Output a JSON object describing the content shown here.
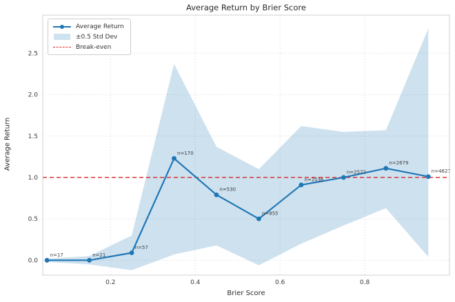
{
  "figure": {
    "title": "Average Return by Brier Score",
    "xlabel": "Brier Score",
    "ylabel": "Average Return"
  },
  "legend": {
    "average_return": "Average Return",
    "std_dev": "±0.5 Std Dev",
    "break_even": "Break-even"
  },
  "colors": {
    "line": "#1f77b4",
    "band_fill": "#1f77b4",
    "band_opacity": 0.22,
    "break_even": "#d62728",
    "grid": "#d2d2d2",
    "spine": "#d0d0d0",
    "text": "#2b2b2b",
    "tick_text": "#3b3b3b",
    "annotation_text": "#3d3d3d"
  },
  "chart_data": {
    "type": "line",
    "title": "Average Return by Brier Score",
    "xlabel": "Brier Score",
    "ylabel": "Average Return",
    "x": [
      0.05,
      0.15,
      0.25,
      0.35,
      0.45,
      0.55,
      0.65,
      0.75,
      0.85,
      0.95
    ],
    "series": [
      {
        "name": "Average Return",
        "values": [
          0.0,
          0.0,
          0.09,
          1.23,
          0.79,
          0.5,
          0.91,
          1.0,
          1.11,
          1.01
        ]
      },
      {
        "name": "+0.5 Std Dev (upper band edge)",
        "values": [
          0.02,
          0.05,
          0.3,
          2.37,
          1.37,
          1.1,
          1.62,
          1.55,
          1.57,
          2.8
        ]
      },
      {
        "name": "-0.5 Std Dev (lower band edge)",
        "values": [
          -0.02,
          -0.05,
          -0.12,
          0.07,
          0.18,
          -0.06,
          0.2,
          0.42,
          0.63,
          0.04
        ]
      }
    ],
    "point_labels": [
      "n=17",
      "n=21",
      "n=57",
      "n=170",
      "n=530",
      "n=855",
      "n=2036",
      "n=2572",
      "n=2679",
      "n=4627"
    ],
    "break_even_value": 1.0,
    "xtick_values": [
      0.2,
      0.4,
      0.6,
      0.8
    ],
    "xtick_labels": [
      "0.2",
      "0.4",
      "0.6",
      "0.8"
    ],
    "ytick_values": [
      0.0,
      0.5,
      1.0,
      1.5,
      2.0,
      2.5
    ],
    "ytick_labels": [
      "0.0",
      "0.5",
      "1.0",
      "1.5",
      "2.0",
      "2.5"
    ],
    "xlim": [
      0.04,
      1.0
    ],
    "ylim": [
      -0.18,
      2.96
    ],
    "grid": "dotted both axes",
    "legend_position": "upper-left"
  }
}
